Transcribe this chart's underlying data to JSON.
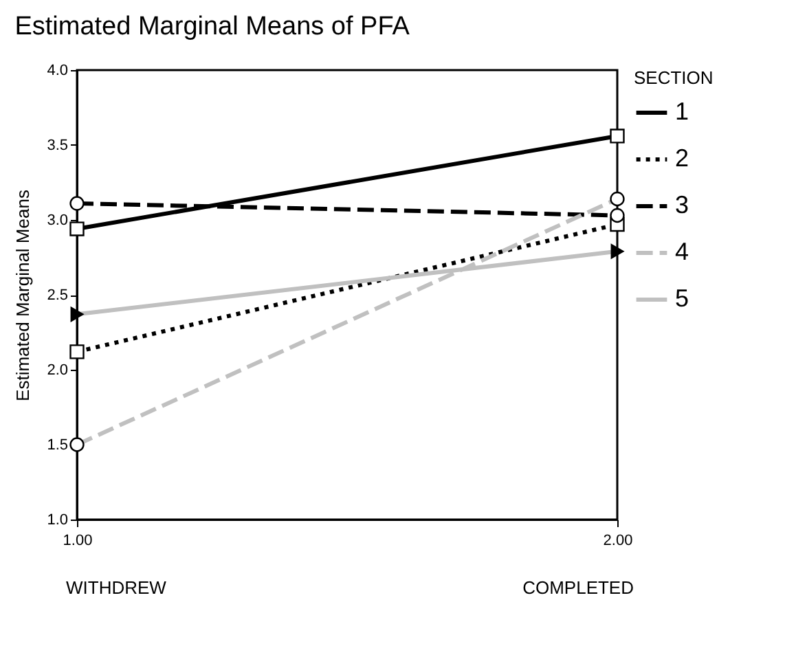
{
  "chart_data": {
    "type": "line",
    "title": "Estimated Marginal Means of PFA",
    "ylabel": "Estimated Marginal Means",
    "legend_title": "SECTION",
    "legend": "right",
    "x": [
      1,
      2
    ],
    "xlim": [
      1,
      2
    ],
    "xticks": [
      {
        "value": 1,
        "label": "1.00"
      },
      {
        "value": 2,
        "label": "2.00"
      }
    ],
    "ylim": [
      1,
      4
    ],
    "yticks": [
      {
        "value": 1,
        "label": "1.0"
      },
      {
        "value": 1.5,
        "label": "1.5"
      },
      {
        "value": 2,
        "label": "2.0"
      },
      {
        "value": 2.5,
        "label": "2.5"
      },
      {
        "value": 3,
        "label": "3.0"
      },
      {
        "value": 3.5,
        "label": "3.5"
      },
      {
        "value": 4,
        "label": "4.0"
      }
    ],
    "grid": false,
    "annotations": [
      "WITHDREW",
      "COMPLETED"
    ],
    "series": [
      {
        "name": "1",
        "color": "#000000",
        "values": [
          2.94,
          3.56
        ],
        "line_style": "solid",
        "marker": "square"
      },
      {
        "name": "2",
        "color": "#000000",
        "values": [
          2.12,
          2.97
        ],
        "line_style": "dotted",
        "marker": "square"
      },
      {
        "name": "3",
        "color": "#000000",
        "values": [
          3.11,
          3.03
        ],
        "line_style": "dashed",
        "marker": "circle"
      },
      {
        "name": "4",
        "color": "#c0c0c0",
        "values": [
          1.5,
          3.14
        ],
        "line_style": "dashed",
        "marker": "circle"
      },
      {
        "name": "5",
        "color": "#c0c0c0",
        "values": [
          2.37,
          2.79
        ],
        "line_style": "solid",
        "marker": "triangle"
      }
    ]
  }
}
